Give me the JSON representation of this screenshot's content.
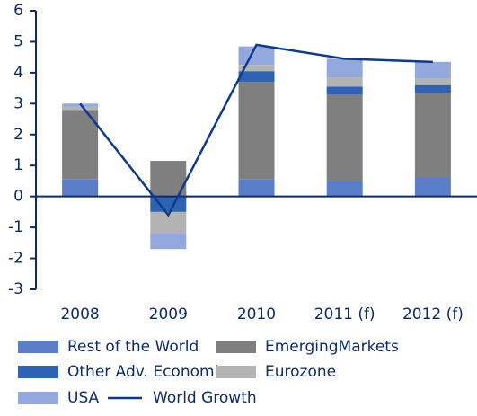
{
  "chart_data": {
    "type": "bar",
    "categories": [
      "2008",
      "2009",
      "2010",
      "2011 (f)",
      "2012 (f)"
    ],
    "series": [
      {
        "name": "Rest of the World",
        "color": "#5b7ec9",
        "values": [
          0.55,
          0,
          0.55,
          0.5,
          0.6
        ]
      },
      {
        "name": "EmergingMarkets",
        "color": "#7f7f7f",
        "values": [
          2.25,
          1.15,
          3.15,
          2.8,
          2.75
        ]
      },
      {
        "name": "Other Adv. Economies",
        "color": "#2e63b3",
        "values": [
          0,
          -0.5,
          0.35,
          0.25,
          0.25
        ]
      },
      {
        "name": "Eurozone",
        "color": "#b3b3b3",
        "values": [
          0.1,
          -0.7,
          0.2,
          0.3,
          0.2
        ]
      },
      {
        "name": "USA",
        "color": "#93a9dd",
        "values": [
          0.1,
          -0.5,
          0.6,
          0.6,
          0.55
        ]
      },
      {
        "name": "World Growth",
        "type": "line",
        "color": "#0d3a8a",
        "values": [
          3.0,
          -0.6,
          4.9,
          4.45,
          4.35
        ]
      }
    ],
    "ylim": [
      -3,
      6
    ],
    "yticks": [
      -3,
      -2,
      -1,
      0,
      1,
      2,
      3,
      4,
      5,
      6
    ]
  }
}
